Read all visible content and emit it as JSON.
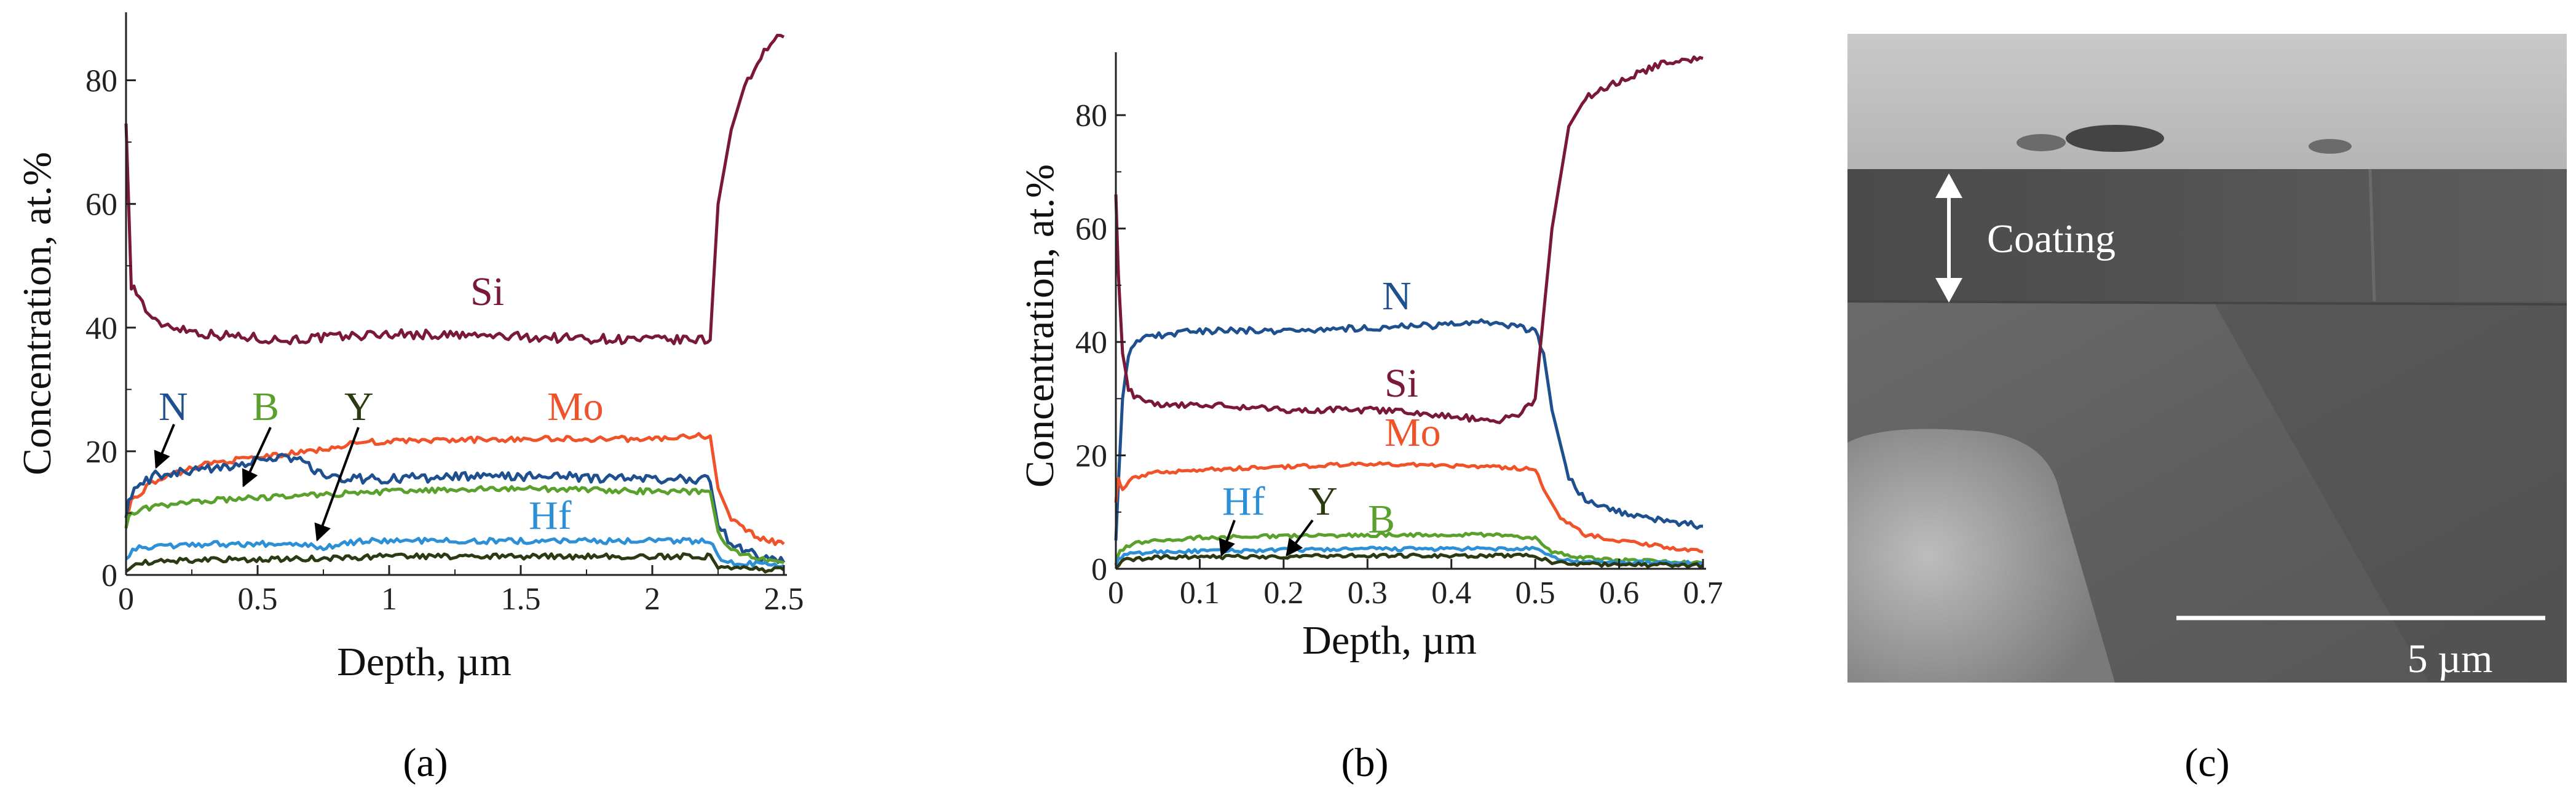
{
  "captions": {
    "a": "(a)",
    "b": "(b)",
    "c": "(c)"
  },
  "colors": {
    "Si": "#7a1838",
    "Mo": "#f0532a",
    "N": "#1e4f8e",
    "B": "#5aa02c",
    "Hf": "#2d8fd6",
    "Y": "#2b3a12"
  },
  "chart_data": [
    {
      "type": "line",
      "panel": "a",
      "xlabel": "Depth, µm",
      "ylabel": "Concentration, at.%",
      "xlim": [
        0,
        2.5
      ],
      "ylim": [
        0,
        90
      ],
      "xticks": [
        "0",
        "0.5",
        "1",
        "1.5",
        "2",
        "2.5"
      ],
      "yticks": [
        "0",
        "20",
        "40",
        "60",
        "80"
      ],
      "grid": false,
      "labels": {
        "Si": "Si",
        "Mo": "Mo",
        "N": "N",
        "B": "B",
        "Y": "Y",
        "Hf": "Hf"
      },
      "series": [
        {
          "name": "Si",
          "x": [
            0,
            0.02,
            0.05,
            0.1,
            0.3,
            0.6,
            1.0,
            1.5,
            2.0,
            2.2,
            2.22,
            2.25,
            2.3,
            2.35,
            2.4,
            2.45,
            2.5
          ],
          "y": [
            73,
            47,
            45,
            41,
            39,
            38,
            39,
            38.5,
            38,
            38,
            38,
            60,
            72,
            79,
            83,
            86,
            87
          ]
        },
        {
          "name": "Mo",
          "x": [
            0,
            0.02,
            0.1,
            0.3,
            0.5,
            0.7,
            0.9,
            1.5,
            2.0,
            2.2,
            2.22,
            2.25,
            2.3,
            2.4,
            2.5
          ],
          "y": [
            8,
            12,
            15,
            18,
            19,
            20,
            21.5,
            22,
            22,
            22.5,
            22.5,
            14,
            9,
            6,
            5
          ]
        },
        {
          "name": "N",
          "x": [
            0,
            0.02,
            0.1,
            0.3,
            0.5,
            0.65,
            0.75,
            0.9,
            1.5,
            2.0,
            2.2,
            2.22,
            2.25,
            2.3,
            2.4,
            2.5
          ],
          "y": [
            10,
            13,
            16,
            17,
            18.5,
            19,
            16,
            15.5,
            16,
            15.5,
            15.5,
            15,
            8,
            5,
            3,
            2
          ]
        },
        {
          "name": "B",
          "x": [
            0,
            0.02,
            0.1,
            0.3,
            0.5,
            0.75,
            1.0,
            1.5,
            2.0,
            2.2,
            2.22,
            2.25,
            2.3,
            2.4,
            2.5
          ],
          "y": [
            8,
            10,
            11,
            12,
            12.5,
            13,
            13.5,
            14,
            13.5,
            13.5,
            13.5,
            7,
            4,
            2.5,
            2
          ]
        },
        {
          "name": "Hf",
          "x": [
            0,
            0.05,
            0.3,
            0.6,
            0.75,
            0.9,
            1.5,
            2.0,
            2.2,
            2.22,
            2.25,
            2.3,
            2.5
          ],
          "y": [
            3,
            4.5,
            5,
            5,
            4.5,
            5.5,
            5.5,
            5.5,
            5.5,
            5.5,
            3,
            2,
            1.5
          ]
        },
        {
          "name": "Y",
          "x": [
            0,
            0.05,
            0.3,
            0.6,
            1.0,
            1.5,
            2.0,
            2.2,
            2.22,
            2.25,
            2.3,
            2.5
          ],
          "y": [
            1,
            2,
            2.5,
            2.5,
            3,
            3,
            3,
            3,
            3,
            1.5,
            1,
            0.8
          ]
        }
      ]
    },
    {
      "type": "line",
      "panel": "b",
      "xlabel": "Depth, µm",
      "ylabel": "Concentration, at.%",
      "xlim": [
        0,
        0.7
      ],
      "ylim": [
        0,
        90
      ],
      "xticks": [
        "0",
        "0.1",
        "0.2",
        "0.3",
        "0.4",
        "0.5",
        "0.6",
        "0.7"
      ],
      "yticks": [
        "0",
        "20",
        "40",
        "60",
        "80"
      ],
      "grid": false,
      "labels": {
        "N": "N",
        "Si": "Si",
        "Mo": "Mo",
        "Hf": "Hf",
        "Y": "Y",
        "B": "B"
      },
      "series": [
        {
          "name": "N",
          "x": [
            0,
            0.003,
            0.008,
            0.015,
            0.025,
            0.04,
            0.1,
            0.2,
            0.3,
            0.4,
            0.45,
            0.5,
            0.51,
            0.52,
            0.54,
            0.56,
            0.6,
            0.65,
            0.7
          ],
          "y": [
            5,
            15,
            30,
            38,
            40,
            41,
            42,
            42,
            42.5,
            43,
            43.5,
            42,
            38,
            28,
            16,
            12,
            10,
            8.5,
            7.5
          ]
        },
        {
          "name": "Si",
          "x": [
            0,
            0.003,
            0.008,
            0.015,
            0.025,
            0.05,
            0.1,
            0.2,
            0.3,
            0.4,
            0.45,
            0.48,
            0.5,
            0.52,
            0.54,
            0.56,
            0.6,
            0.65,
            0.7
          ],
          "y": [
            66,
            52,
            38,
            32,
            30,
            29,
            29,
            28,
            28,
            27,
            26,
            27,
            30,
            60,
            78,
            83,
            86,
            89,
            90
          ]
        },
        {
          "name": "Mo",
          "x": [
            0,
            0.003,
            0.008,
            0.02,
            0.05,
            0.1,
            0.3,
            0.45,
            0.5,
            0.51,
            0.53,
            0.56,
            0.6,
            0.65,
            0.7
          ],
          "y": [
            12,
            16,
            14,
            16,
            17,
            17.5,
            18.5,
            18,
            17.5,
            14,
            9,
            6,
            5,
            4,
            3
          ]
        },
        {
          "name": "B",
          "x": [
            0,
            0.005,
            0.02,
            0.05,
            0.1,
            0.3,
            0.45,
            0.5,
            0.52,
            0.55,
            0.6,
            0.7
          ],
          "y": [
            1,
            3,
            4.5,
            5,
            5.5,
            6,
            6,
            5.5,
            3,
            2,
            1.5,
            1
          ]
        },
        {
          "name": "Hf",
          "x": [
            0,
            0.01,
            0.05,
            0.3,
            0.5,
            0.52,
            0.55,
            0.7
          ],
          "y": [
            1,
            2.5,
            3,
            3.5,
            3.5,
            2,
            1.2,
            1
          ]
        },
        {
          "name": "Y",
          "x": [
            0,
            0.01,
            0.05,
            0.3,
            0.5,
            0.52,
            0.55,
            0.7
          ],
          "y": [
            0.5,
            1.5,
            2,
            2.3,
            2.3,
            1.2,
            0.8,
            0.6
          ]
        }
      ]
    }
  ],
  "sem_image": {
    "coating_label": "Coating",
    "scale_label": "5 µm"
  }
}
